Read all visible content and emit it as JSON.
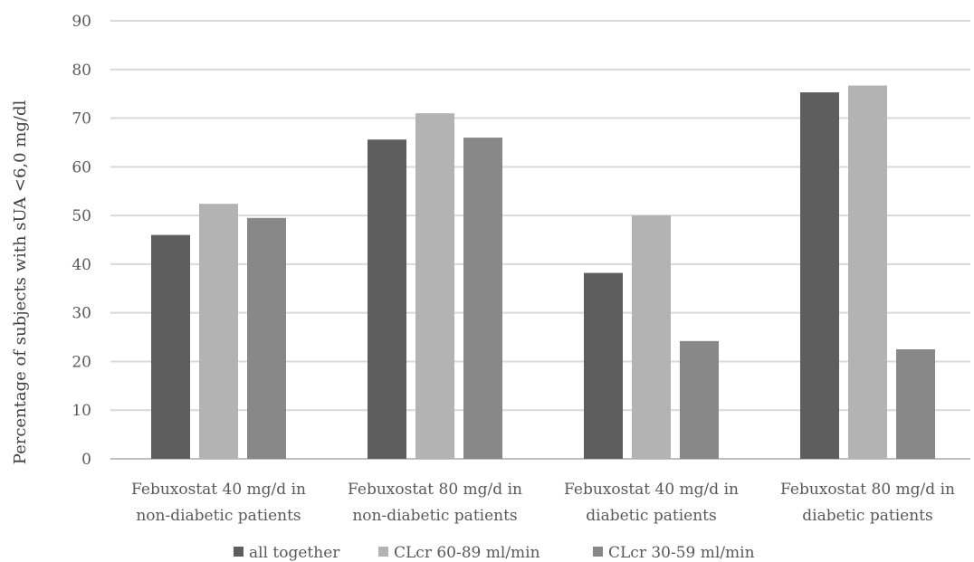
{
  "chart_data": {
    "type": "bar",
    "title": "",
    "xlabel": "",
    "ylabel": "Percentage of subjects with sUA <6,0 mg/dl",
    "ylim": [
      0,
      90
    ],
    "yticks": [
      0,
      10,
      20,
      30,
      40,
      50,
      60,
      70,
      80,
      90
    ],
    "grid": true,
    "legend_position": "bottom",
    "categories": [
      [
        "Febuxostat 40 mg/d in",
        "non-diabetic patients"
      ],
      [
        "Febuxostat 80 mg/d in",
        "non-diabetic patients"
      ],
      [
        "Febuxostat 40 mg/d in",
        "diabetic patients"
      ],
      [
        "Febuxostat 80 mg/d in",
        "diabetic patients"
      ]
    ],
    "series": [
      {
        "name": "all together",
        "color": "#5e5e5e",
        "values": [
          46.0,
          65.6,
          38.2,
          75.3
        ]
      },
      {
        "name": "CLcr 60-89 ml/min",
        "color": "#b3b3b3",
        "values": [
          52.4,
          71.0,
          50.0,
          76.7
        ]
      },
      {
        "name": "CLcr 30-59 ml/min",
        "color": "#888888",
        "values": [
          49.5,
          66.0,
          24.2,
          22.5
        ]
      }
    ]
  }
}
